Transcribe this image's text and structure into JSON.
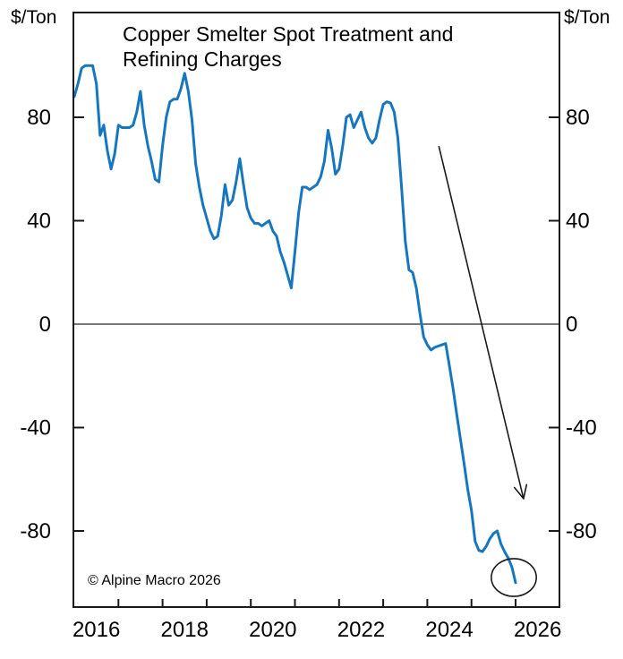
{
  "chart_data": {
    "type": "line",
    "title": "Copper Smelter Spot Treatment and Refining Charges",
    "title_lines": [
      "Copper Smelter Spot Treatment and",
      "Refining Charges"
    ],
    "ylabel_left": "$/Ton",
    "ylabel_right": "$/Ton",
    "frequency": "monthly",
    "x_start": {
      "year": 2016,
      "month": 1
    },
    "x_end": {
      "year": 2026,
      "month": 1
    },
    "xlim_years": [
      2016,
      2027
    ],
    "ylim": [
      -110,
      120
    ],
    "y_ticks": [
      80,
      40,
      0,
      -40,
      -80
    ],
    "y_tick_labels": [
      "80",
      "40",
      "0",
      "-40",
      "-80"
    ],
    "x_tick_years": [
      2017,
      2018,
      2019,
      2020,
      2021,
      2022,
      2023,
      2024,
      2025,
      2026
    ],
    "x_label_years": [
      "2016",
      "2018",
      "2020",
      "2022",
      "2024",
      "2026"
    ],
    "zero_line": true,
    "grid": false,
    "legend_position": "none",
    "series": [
      {
        "name": "Copper smelter spot treatment and refining charges ($/Ton)",
        "color": "#1777be",
        "values": [
          88,
          93,
          99,
          100,
          100,
          100,
          93,
          73,
          77,
          67,
          60,
          66,
          77,
          76,
          76,
          76,
          77,
          82,
          90,
          77,
          69,
          63,
          56,
          55,
          69,
          80,
          86,
          87,
          87,
          91,
          97,
          90,
          79,
          62,
          53,
          46,
          41,
          36,
          33,
          34,
          42,
          54,
          46,
          48,
          55,
          64,
          54,
          45,
          41,
          39,
          39,
          38,
          39,
          40,
          36,
          34,
          28,
          24,
          19,
          14,
          28,
          43,
          53,
          53,
          52,
          53,
          54,
          57,
          63,
          75,
          68,
          58,
          60,
          69,
          80,
          81,
          76,
          79,
          82,
          76,
          72,
          70,
          72,
          79,
          85,
          86,
          85.5,
          82,
          72,
          53,
          32,
          21,
          20,
          14,
          4,
          -5,
          -8,
          -10,
          -9,
          -8.5,
          -8,
          -7.5,
          -16,
          -25,
          -35,
          -44.5,
          -54,
          -64,
          -72,
          -84,
          -87.5,
          -88,
          -86,
          -83,
          -81,
          -80,
          -85,
          -88,
          -90.5,
          -94,
          -100
        ]
      }
    ]
  },
  "annotations": {
    "decline_arrow": {
      "from_year": 2024.26,
      "from_value": 68.9,
      "to_year": 2026.18,
      "to_value": -67.5,
      "color": "#1a1a1a"
    },
    "latest_point_ellipse": {
      "center_year": 2025.96,
      "center_value": -98,
      "rx_years": 0.51,
      "ry_value": 7.3,
      "color": "#1a1a1a"
    },
    "copyright": "© Alpine Macro 2026"
  },
  "colors": {
    "line": "#1777be",
    "axis": "#1a1a1a",
    "zero_line": "#4a4a4a",
    "text": "#000000",
    "background": "#ffffff"
  }
}
